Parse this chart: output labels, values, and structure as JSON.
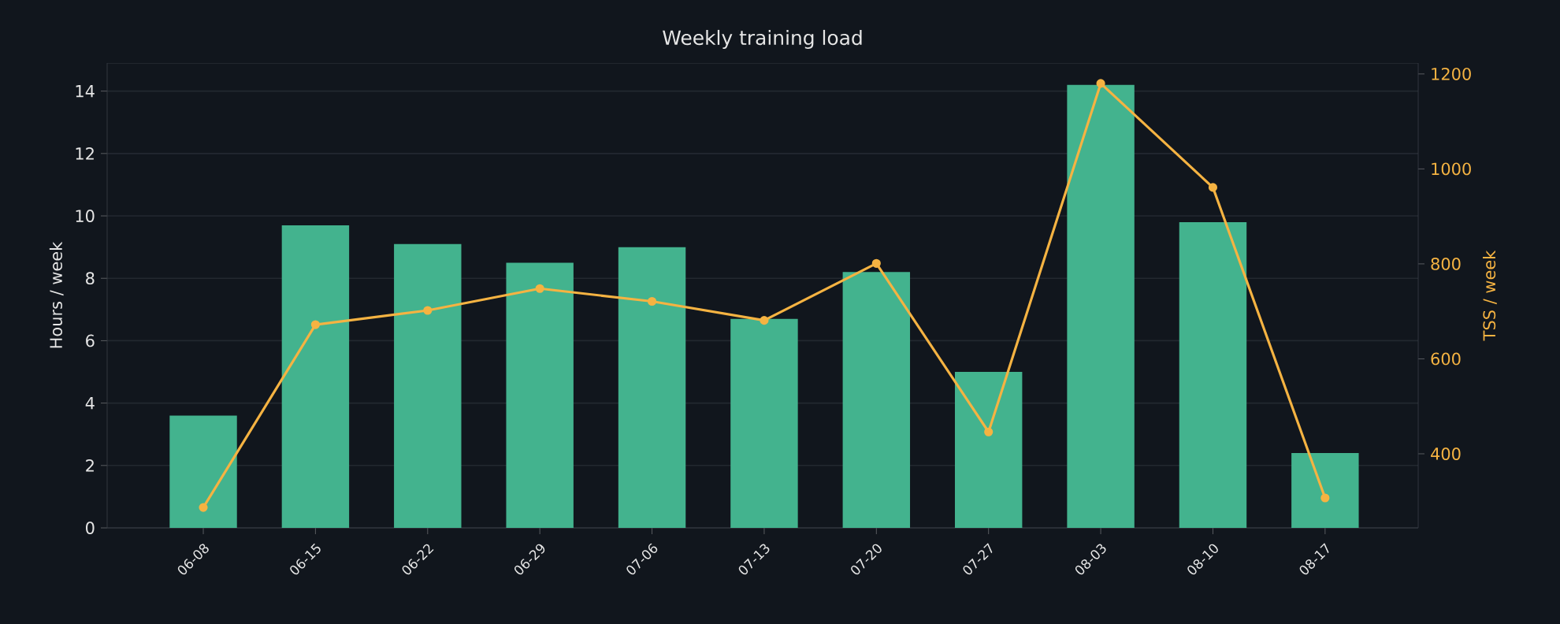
{
  "chart_data": {
    "type": "bar",
    "title": "Weekly training load",
    "ylabel": "Hours / week",
    "y2label": "TSS / week",
    "categories": [
      "06-08",
      "06-15",
      "06-22",
      "06-29",
      "07-06",
      "07-13",
      "07-20",
      "07-27",
      "08-03",
      "08-10",
      "08-17"
    ],
    "series": [
      {
        "color": "#43b38e",
        "values": [
          3.6,
          9.7,
          9.1,
          8.5,
          9.0,
          6.7,
          8.2,
          5.0,
          14.2,
          9.8,
          2.4
        ]
      },
      {
        "type": "line",
        "axis": "y2",
        "color": "#f5b342",
        "marker": "circle",
        "values": [
          287,
          672,
          702,
          748,
          721,
          681,
          801,
          446,
          1180,
          961,
          307
        ]
      }
    ],
    "ylim": [
      0,
      14.9
    ],
    "yticks": [
      0,
      2,
      4,
      6,
      8,
      10,
      12,
      14
    ],
    "y2lim": [
      244,
      1223
    ],
    "y2ticks": [
      400,
      600,
      800,
      1000,
      1200
    ],
    "grid": "y"
  }
}
